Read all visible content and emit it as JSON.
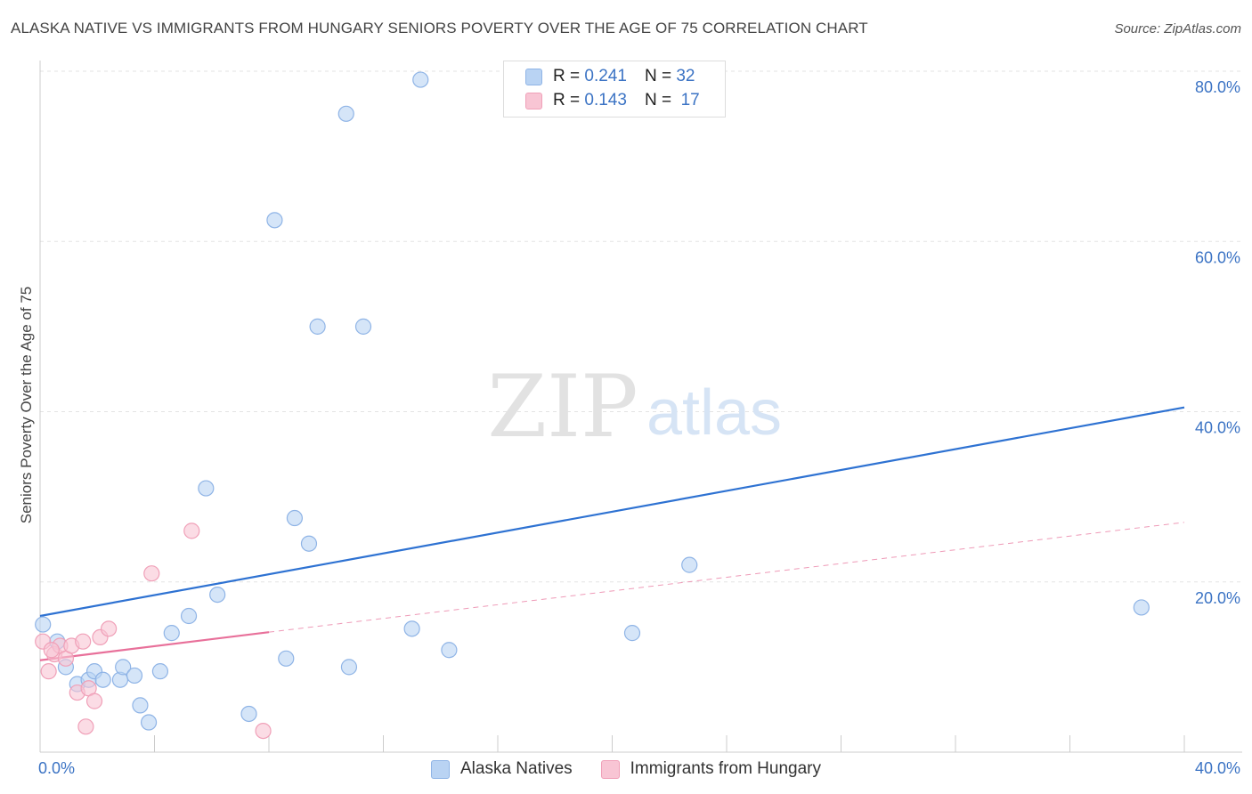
{
  "header": {
    "title": "ALASKA NATIVE VS IMMIGRANTS FROM HUNGARY SENIORS POVERTY OVER THE AGE OF 75 CORRELATION CHART",
    "source": "Source: ZipAtlas.com"
  },
  "watermark": {
    "zip": "ZIP",
    "atlas": "atlas"
  },
  "legend_top": {
    "rows": [
      {
        "r_label": "R =",
        "r_value": "0.241",
        "n_label": "N =",
        "n_value": "32"
      },
      {
        "r_label": "R =",
        "r_value": "0.143",
        "n_label": "N =",
        "n_value": "17"
      }
    ]
  },
  "chart_data": {
    "type": "scatter",
    "title": "ALASKA NATIVE VS IMMIGRANTS FROM HUNGARY SENIORS POVERTY OVER THE AGE OF 75 CORRELATION CHART",
    "xlabel": "",
    "ylabel": "Seniors Poverty Over the Age of 75",
    "xlim": [
      0,
      40
    ],
    "ylim": [
      0,
      80
    ],
    "x_tick_labels": [
      "0.0%",
      "40.0%"
    ],
    "y_tick_labels": [
      "20.0%",
      "40.0%",
      "60.0%",
      "80.0%"
    ],
    "y_ticks": [
      20,
      40,
      60,
      80
    ],
    "colors": {
      "blue_fill": "#b9d3f3",
      "blue_stroke": "#8fb4e6",
      "blue_line": "#2e72d2",
      "pink_fill": "#f8c5d4",
      "pink_stroke": "#f0a0b8",
      "pink_line": "#e8709a",
      "tick_text": "#3b73c4",
      "grid": "#e3e3e3"
    },
    "series": [
      {
        "name": "Alaska Natives",
        "r": 0.241,
        "n": 32,
        "points": [
          [
            0.1,
            15.0
          ],
          [
            0.6,
            13.0
          ],
          [
            0.9,
            10.0
          ],
          [
            1.3,
            8.0
          ],
          [
            1.7,
            8.5
          ],
          [
            1.9,
            9.5
          ],
          [
            2.2,
            8.5
          ],
          [
            2.8,
            8.5
          ],
          [
            2.9,
            10.0
          ],
          [
            3.3,
            9.0
          ],
          [
            3.5,
            5.5
          ],
          [
            3.8,
            3.5
          ],
          [
            4.2,
            9.5
          ],
          [
            4.6,
            14.0
          ],
          [
            5.2,
            16.0
          ],
          [
            5.8,
            31.0
          ],
          [
            6.2,
            18.5
          ],
          [
            7.3,
            4.5
          ],
          [
            8.2,
            62.5
          ],
          [
            8.6,
            11.0
          ],
          [
            8.9,
            27.5
          ],
          [
            9.4,
            24.5
          ],
          [
            9.7,
            50.0
          ],
          [
            10.7,
            75.0
          ],
          [
            10.8,
            10.0
          ],
          [
            11.3,
            50.0
          ],
          [
            13.3,
            79.0
          ],
          [
            13.0,
            14.5
          ],
          [
            14.3,
            12.0
          ],
          [
            20.7,
            14.0
          ],
          [
            22.7,
            22.0
          ],
          [
            38.5,
            17.0
          ]
        ],
        "trend": {
          "x": [
            0,
            40
          ],
          "y": [
            16.0,
            40.5
          ]
        }
      },
      {
        "name": "Immigrants from Hungary",
        "r": 0.143,
        "n": 17,
        "points": [
          [
            0.1,
            13.0
          ],
          [
            0.3,
            9.5
          ],
          [
            0.5,
            11.5
          ],
          [
            0.7,
            12.5
          ],
          [
            0.9,
            11.0
          ],
          [
            1.1,
            12.5
          ],
          [
            1.3,
            7.0
          ],
          [
            1.5,
            13.0
          ],
          [
            1.6,
            3.0
          ],
          [
            1.7,
            7.5
          ],
          [
            1.9,
            6.0
          ],
          [
            2.1,
            13.5
          ],
          [
            2.4,
            14.5
          ],
          [
            3.9,
            21.0
          ],
          [
            5.3,
            26.0
          ],
          [
            7.8,
            2.5
          ],
          [
            0.4,
            12.0
          ]
        ],
        "trend": {
          "x": [
            0,
            8
          ],
          "y": [
            10.8,
            14.1
          ]
        },
        "trend_extended": {
          "x": [
            8,
            40
          ],
          "y": [
            14.1,
            27.0
          ]
        }
      }
    ]
  },
  "legend_bottom": {
    "items": [
      {
        "label": "Alaska Natives"
      },
      {
        "label": "Immigrants from Hungary"
      }
    ]
  }
}
